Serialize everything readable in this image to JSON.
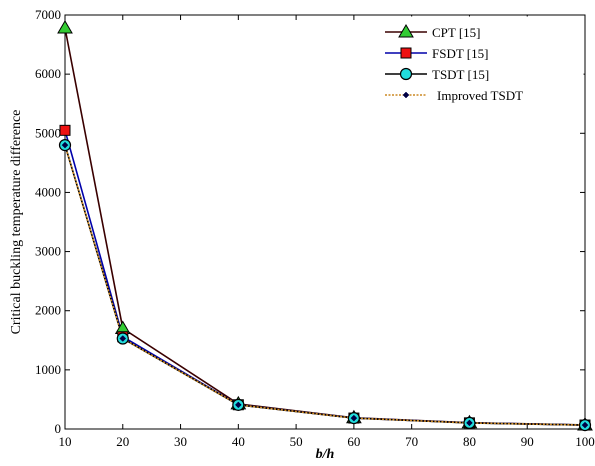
{
  "chart_data": {
    "type": "line",
    "title": "",
    "xlabel": "b/h",
    "ylabel": "Critical buckling temperature difference",
    "xlim": [
      10,
      100
    ],
    "ylim": [
      0,
      7000
    ],
    "xticks": [
      10,
      20,
      30,
      40,
      50,
      60,
      70,
      80,
      90,
      100
    ],
    "yticks": [
      0,
      1000,
      2000,
      3000,
      4000,
      5000,
      6000,
      7000
    ],
    "grid": false,
    "legend_position": "top-right",
    "x": [
      10,
      20,
      40,
      60,
      80,
      100
    ],
    "series": [
      {
        "name": "CPT [15]",
        "values": [
          6780,
          1700,
          425,
          190,
          106,
          68
        ],
        "line_color": "#3a0000",
        "marker": "triangle",
        "marker_fill": "#33cc33"
      },
      {
        "name": "FSDT [15]",
        "values": [
          5050,
          1560,
          410,
          185,
          104,
          67
        ],
        "line_color": "#0000aa",
        "marker": "square",
        "marker_fill": "#ee1111"
      },
      {
        "name": "TSDT [15]",
        "values": [
          4800,
          1530,
          408,
          184,
          103,
          66
        ],
        "line_color": "#000000",
        "marker": "circle",
        "marker_fill": "#22dddd"
      },
      {
        "name": "Improved TSDT",
        "values": [
          4800,
          1530,
          408,
          184,
          103,
          66
        ],
        "line_color": "#cc8822",
        "marker": "diamond",
        "marker_fill": "#000044",
        "dashed": true
      }
    ]
  }
}
